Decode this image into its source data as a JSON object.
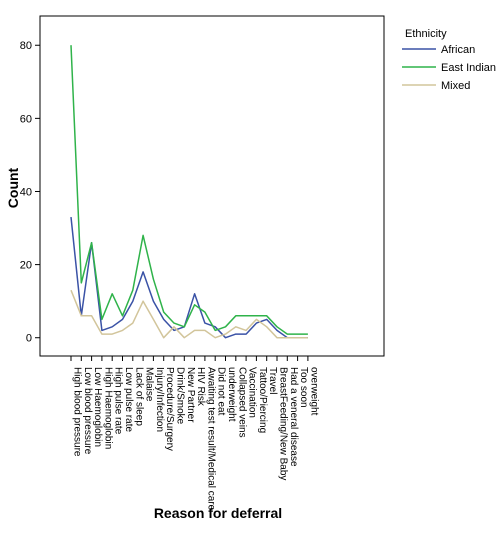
{
  "chart_data": {
    "type": "line",
    "xlabel": "Reason for deferral",
    "ylabel": "Count",
    "ylim": [
      -5,
      88
    ],
    "yticks": [
      0,
      20,
      40,
      60,
      80
    ],
    "grid": false,
    "legend_placement": "right",
    "legend_title": "Ethnicity",
    "categories": [
      "High blood pressure",
      "Low blood pressure",
      "Low Haemoglobin",
      "High Haemoglobin",
      "High pulse rate",
      "Low pulse rate",
      "Lack of sleep",
      "Malaise",
      "Injury/Infection",
      "Procedure/Surgery",
      "Drink/Smoke",
      "New Partner",
      "HIV Risk",
      "Awaiting test result/Medical care",
      "Did not eat",
      "underweight",
      "Collapsed veins",
      "Vaccination",
      "Tattoo/Piercing",
      "Travel",
      "BreastFeeding/New Baby",
      "Had a veneral disease",
      "Too soon",
      "overweight"
    ],
    "series": [
      {
        "name": "African",
        "color": "#3a52a6",
        "values": [
          33,
          6,
          26,
          2,
          3,
          5,
          10,
          18,
          10,
          5,
          2,
          3,
          12,
          4,
          3,
          0,
          1,
          1,
          4,
          5,
          2,
          0,
          0,
          0
        ]
      },
      {
        "name": "East Indian",
        "color": "#2fb34a",
        "values": [
          80,
          15,
          26,
          5,
          12,
          6,
          13,
          28,
          16,
          7,
          4,
          3,
          9,
          7,
          2,
          3,
          6,
          6,
          6,
          6,
          3,
          1,
          1,
          1
        ]
      },
      {
        "name": "Mixed",
        "color": "#d2c59b",
        "values": [
          13,
          6,
          6,
          1,
          1,
          2,
          4,
          10,
          5,
          0,
          3,
          0,
          2,
          2,
          0,
          1,
          3,
          2,
          5,
          3,
          0,
          0,
          0,
          0
        ]
      }
    ]
  }
}
